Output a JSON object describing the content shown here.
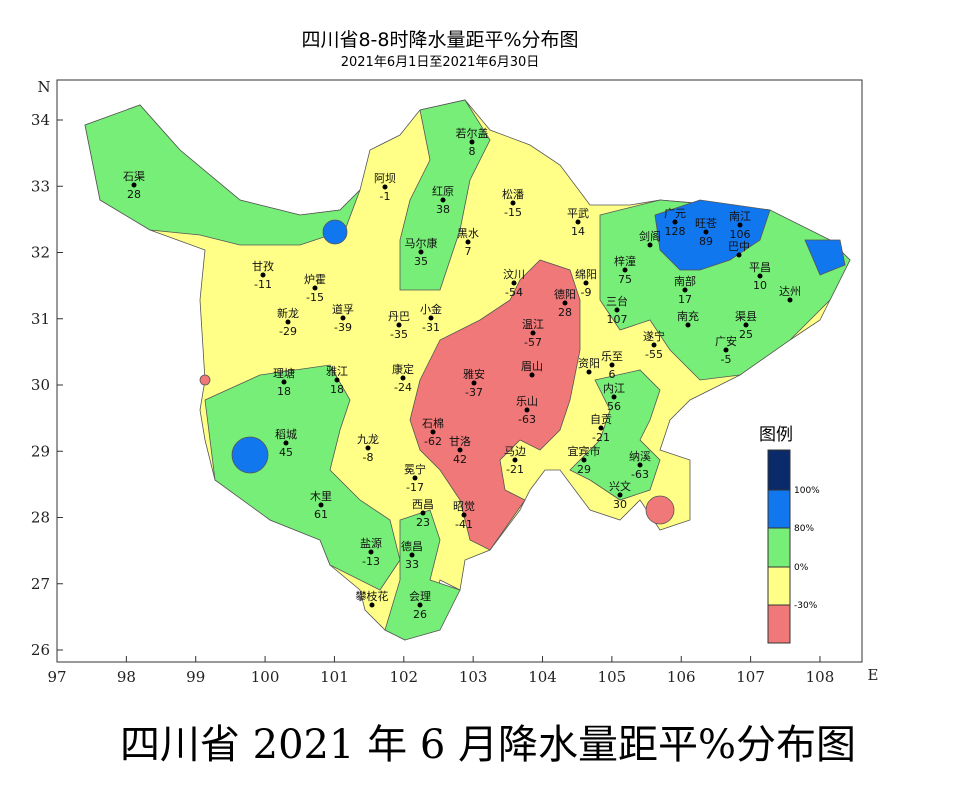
{
  "header": {
    "title": "四川省8-8时降水量距平%分布图",
    "subtitle": "2021年6月1日至2021年6月30日"
  },
  "axes": {
    "xticks": [
      97,
      98,
      99,
      100,
      101,
      102,
      103,
      104,
      105,
      106,
      107,
      108
    ],
    "yticks": [
      26,
      27,
      28,
      29,
      30,
      31,
      32,
      33,
      34
    ],
    "xlabel": "E",
    "ylabel": "N"
  },
  "stations": [
    {
      "name": "石渠",
      "value": 28
    },
    {
      "name": "阿坝",
      "value": -1
    },
    {
      "name": "若尔盖",
      "value": 8
    },
    {
      "name": "红原",
      "value": 38
    },
    {
      "name": "松潘",
      "value": -15
    },
    {
      "name": "平武",
      "value": 14
    },
    {
      "name": "广元",
      "value": 128
    },
    {
      "name": "旺苍",
      "value": 89
    },
    {
      "name": "南江",
      "value": 106
    },
    {
      "name": "马尔康",
      "value": 35
    },
    {
      "name": "黑水",
      "value": 7
    },
    {
      "name": "剑阁"
    },
    {
      "name": "巴中"
    },
    {
      "name": "甘孜",
      "value": -11
    },
    {
      "name": "炉霍",
      "value": -15
    },
    {
      "name": "梓潼",
      "value": 75
    },
    {
      "name": "南部",
      "value": 17
    },
    {
      "name": "平昌",
      "value": 10
    },
    {
      "name": "汶川",
      "value": -54
    },
    {
      "name": "绵阳",
      "value": -9
    },
    {
      "name": "达州"
    },
    {
      "name": "新龙",
      "value": -29
    },
    {
      "name": "道孚",
      "value": -39
    },
    {
      "name": "丹巴",
      "value": -35
    },
    {
      "name": "小金",
      "value": -31
    },
    {
      "name": "德阳",
      "value": 28
    },
    {
      "name": "三台",
      "value": 107
    },
    {
      "name": "南充"
    },
    {
      "name": "渠县",
      "value": 25
    },
    {
      "name": "遂宁",
      "value": -55
    },
    {
      "name": "广安",
      "value": -5
    },
    {
      "name": "温江",
      "value": -57
    },
    {
      "name": "乐至",
      "value": 6
    },
    {
      "name": "理塘",
      "value": 18
    },
    {
      "name": "雅江",
      "value": 18
    },
    {
      "name": "康定",
      "value": -24
    },
    {
      "name": "雅安",
      "value": -37
    },
    {
      "name": "眉山"
    },
    {
      "name": "资阳"
    },
    {
      "name": "内江",
      "value": 56
    },
    {
      "name": "乐山",
      "value": -63
    },
    {
      "name": "自贡",
      "value": -21
    },
    {
      "name": "稻城",
      "value": 45
    },
    {
      "name": "九龙",
      "value": -8
    },
    {
      "name": "石棉",
      "value": -62
    },
    {
      "name": "甘洛",
      "value": 42
    },
    {
      "name": "马边",
      "value": -21
    },
    {
      "name": "宜宾市",
      "value": 29
    },
    {
      "name": "纳溪",
      "value": -63
    },
    {
      "name": "冕宁",
      "value": -17
    },
    {
      "name": "兴文",
      "value": 30
    },
    {
      "name": "木里",
      "value": 61
    },
    {
      "name": "西昌",
      "value": 23
    },
    {
      "name": "昭觉",
      "value": -41
    },
    {
      "name": "盐源",
      "value": -13
    },
    {
      "name": "德昌",
      "value": 33
    },
    {
      "name": "攀枝花"
    },
    {
      "name": "会理",
      "value": 26
    }
  ],
  "legend": {
    "title": "图例",
    "labels": [
      "100%",
      "80%",
      "0%",
      "-30%"
    ]
  },
  "caption": "四川省 2021 年 6 月降水量距平%分布图"
}
